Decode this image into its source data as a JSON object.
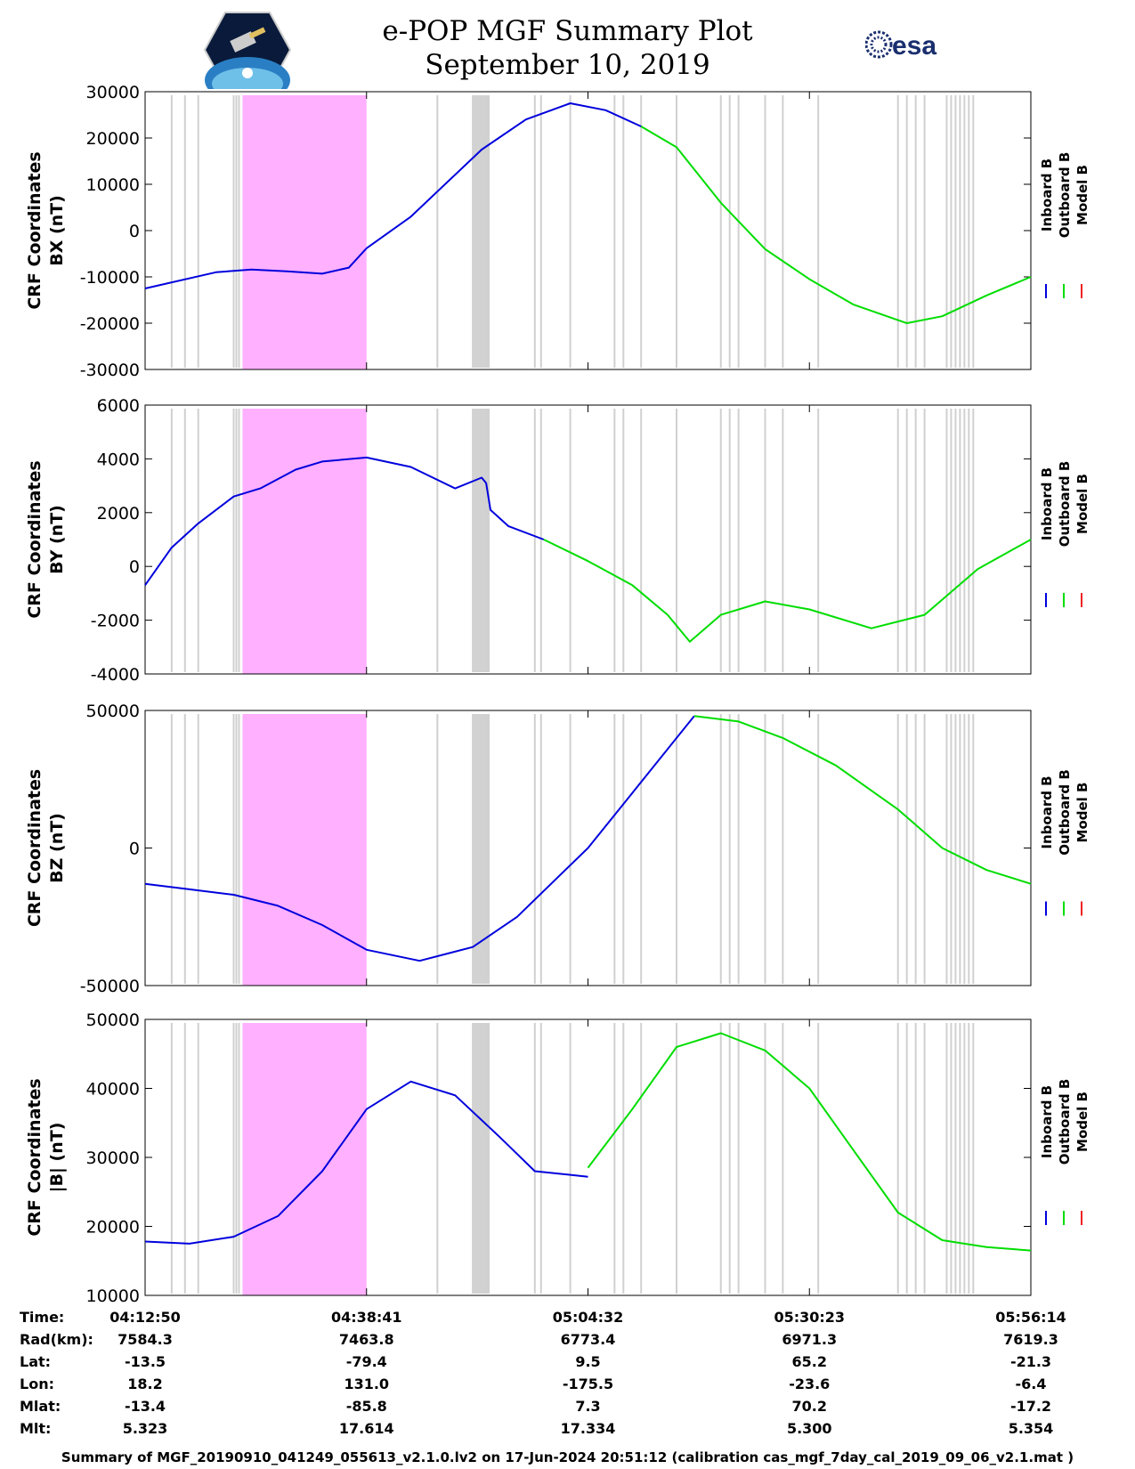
{
  "header": {
    "title_line1": "e-POP MGF Summary Plot",
    "title_line2": "September 10, 2019",
    "logo_left": "CASSIOPE mission logo",
    "logo_right": "esa"
  },
  "colors": {
    "inboard": "#0000dd",
    "outboard": "#00dd00",
    "model": "#ee2222",
    "highlight": "#ffb0ff",
    "gaps": "#d0d0d0"
  },
  "chart_data": [
    {
      "type": "line",
      "ylabel_line1": "CRF Coordinates",
      "ylabel_line2": "BX (nT)",
      "ylim": [
        -30000,
        30000
      ],
      "yticks": [
        30000,
        20000,
        10000,
        0,
        -10000,
        -20000,
        -30000
      ],
      "ytick_labels": [
        "30000",
        "20000",
        "10000",
        "0",
        "-10000",
        "-20000",
        "-30000"
      ],
      "legend": [
        "Inboard B",
        "Outboard B",
        "Model B"
      ],
      "series": [
        {
          "name": "Inboard B",
          "x": [
            0,
            0.08,
            0.12,
            0.16,
            0.2,
            0.23,
            0.25
          ],
          "y": [
            -12500,
            -9000,
            -8400,
            -8800,
            -9300,
            -8000,
            -3800
          ]
        },
        {
          "name": "Inboard B",
          "x": [
            0.25,
            0.3,
            0.38,
            0.43,
            0.48,
            0.52,
            0.56
          ],
          "y": [
            -3800,
            3000,
            17500,
            24000,
            27500,
            26000,
            22500
          ]
        },
        {
          "name": "Outboard B",
          "x": [
            0.56,
            0.6,
            0.65,
            0.7,
            0.75,
            0.8,
            0.86,
            0.9,
            0.95,
            1.0
          ],
          "y": [
            22500,
            18000,
            6000,
            -4000,
            -10500,
            -16000,
            -20000,
            -18500,
            -14000,
            -10000
          ]
        }
      ],
      "shade_x": [
        0.11,
        0.25
      ]
    },
    {
      "type": "line",
      "ylabel_line1": "CRF Coordinates",
      "ylabel_line2": "BY (nT)",
      "ylim": [
        -4000,
        6000
      ],
      "yticks": [
        6000,
        4000,
        2000,
        0,
        -2000,
        -4000
      ],
      "ytick_labels": [
        "6000",
        "4000",
        "2000",
        "0",
        "-2000",
        "-4000"
      ],
      "legend": [
        "Inboard B",
        "Outboard B",
        "Model B"
      ],
      "series": [
        {
          "name": "Inboard B",
          "x": [
            0,
            0.03,
            0.06,
            0.1,
            0.13,
            0.17,
            0.2,
            0.25,
            0.3,
            0.35,
            0.38,
            0.385,
            0.39,
            0.41,
            0.45
          ],
          "y": [
            -700,
            700,
            1600,
            2600,
            2900,
            3600,
            3900,
            4050,
            3700,
            2900,
            3300,
            3100,
            2100,
            1500,
            1000
          ]
        },
        {
          "name": "Outboard B",
          "x": [
            0.45,
            0.5,
            0.55,
            0.59,
            0.615,
            0.65,
            0.7,
            0.75,
            0.82,
            0.88,
            0.94,
            1.0
          ],
          "y": [
            1000,
            200,
            -700,
            -1800,
            -2800,
            -1800,
            -1300,
            -1600,
            -2300,
            -1800,
            -100,
            1000
          ]
        }
      ],
      "shade_x": [
        0.11,
        0.25
      ]
    },
    {
      "type": "line",
      "ylabel_line1": "CRF Coordinates",
      "ylabel_line2": "BZ (nT)",
      "ylim": [
        -50000,
        50000
      ],
      "yticks": [
        50000,
        0,
        -50000
      ],
      "ytick_labels": [
        "50000",
        "0",
        "-50000"
      ],
      "legend": [
        "Inboard B",
        "Outboard B",
        "Model B"
      ],
      "series": [
        {
          "name": "Inboard B",
          "x": [
            0,
            0.05,
            0.1,
            0.15,
            0.2,
            0.25,
            0.31,
            0.37,
            0.42,
            0.5,
            0.55,
            0.62
          ],
          "y": [
            -13000,
            -15000,
            -17000,
            -21000,
            -28000,
            -37000,
            -41000,
            -36000,
            -25000,
            0,
            20000,
            48000
          ]
        },
        {
          "name": "Outboard B",
          "x": [
            0.62,
            0.67,
            0.72,
            0.78,
            0.85,
            0.9,
            0.95,
            1.0
          ],
          "y": [
            48000,
            46000,
            40000,
            30000,
            14000,
            0,
            -8000,
            -13000
          ]
        }
      ],
      "shade_x": [
        0.11,
        0.25
      ]
    },
    {
      "type": "line",
      "ylabel_line1": "CRF Coordinates",
      "ylabel_line2": "|B| (nT)",
      "ylim": [
        10000,
        50000
      ],
      "yticks": [
        50000,
        40000,
        30000,
        20000,
        10000
      ],
      "ytick_labels": [
        "50000",
        "40000",
        "30000",
        "20000",
        "10000"
      ],
      "legend": [
        "Inboard B",
        "Outboard B",
        "Model B"
      ],
      "series": [
        {
          "name": "Inboard B",
          "x": [
            0,
            0.05,
            0.1,
            0.15,
            0.2,
            0.25,
            0.3,
            0.35,
            0.4,
            0.44,
            0.5
          ],
          "y": [
            17800,
            17500,
            18500,
            21500,
            28000,
            37000,
            41000,
            39000,
            33000,
            28000,
            27200
          ]
        },
        {
          "name": "Outboard B",
          "x": [
            0.5,
            0.55,
            0.6,
            0.65,
            0.7,
            0.75,
            0.8,
            0.85,
            0.9,
            0.95,
            1.0
          ],
          "y": [
            28500,
            37000,
            46000,
            48000,
            45500,
            40000,
            31000,
            22000,
            18000,
            17000,
            16500
          ]
        }
      ],
      "shade_x": [
        0.11,
        0.25
      ]
    }
  ],
  "xticks": [
    "04:12:50",
    "04:38:41",
    "05:04:32",
    "05:30:23",
    "05:56:14"
  ],
  "ephemeris": {
    "rows": [
      {
        "label": "Time:",
        "values": [
          "04:12:50",
          "04:38:41",
          "05:04:32",
          "05:30:23",
          "05:56:14"
        ]
      },
      {
        "label": "Rad(km):",
        "values": [
          "7584.3",
          "7463.8",
          "6773.4",
          "6971.3",
          "7619.3"
        ]
      },
      {
        "label": "Lat:",
        "values": [
          "-13.5",
          "-79.4",
          "9.5",
          "65.2",
          "-21.3"
        ]
      },
      {
        "label": "Lon:",
        "values": [
          "18.2",
          "131.0",
          "-175.5",
          "-23.6",
          "-6.4"
        ]
      },
      {
        "label": "Mlat:",
        "values": [
          "-13.4",
          "-85.8",
          "7.3",
          "70.2",
          "-17.2"
        ]
      },
      {
        "label": "Mlt:",
        "values": [
          "5.323",
          "17.614",
          "17.334",
          "5.300",
          "5.354"
        ]
      }
    ]
  },
  "footer": "Summary of MGF_20190910_041249_055613_v2.1.0.lv2 on 17-Jun-2024 20:51:12 (calibration cas_mgf_7day_cal_2019_09_06_v2.1.mat )"
}
